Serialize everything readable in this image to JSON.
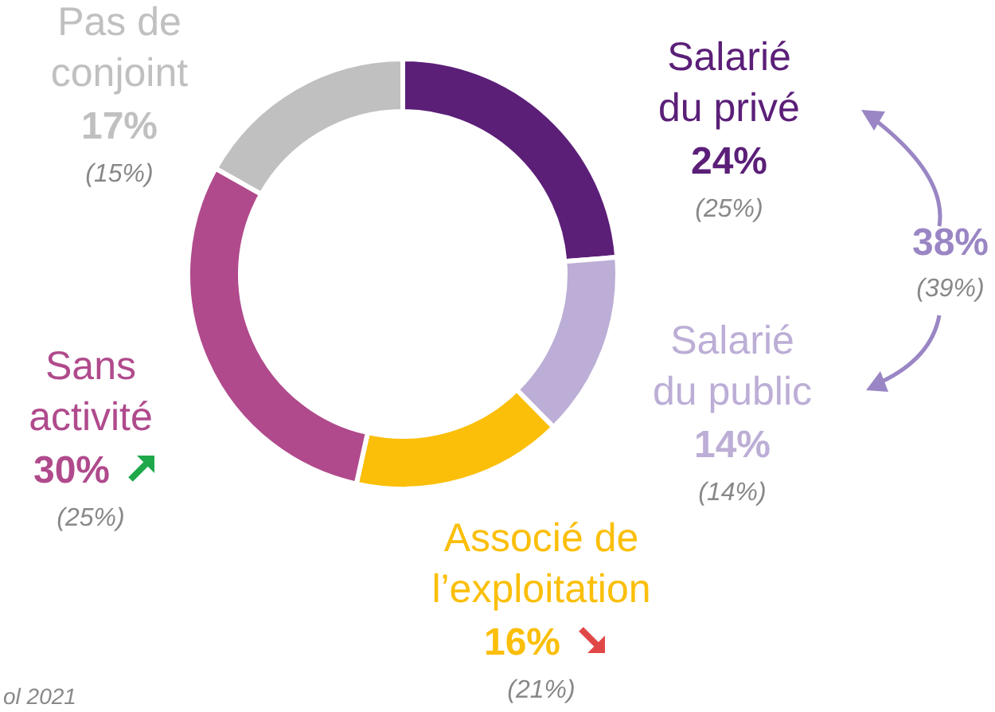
{
  "chart_data": {
    "type": "donut",
    "categories": [
      "Salarié du privé",
      "Salarié du public",
      "Associé de l’exploitation",
      "Sans activité",
      "Pas de conjoint"
    ],
    "values": [
      24,
      14,
      16,
      30,
      17
    ],
    "colors": [
      "#5b1f78",
      "#bcaed6",
      "#fbbf0a",
      "#b04a8c",
      "#c0c0c0"
    ],
    "value_labels": [
      "24%",
      "14%",
      "16%",
      "30%",
      "17%"
    ],
    "annotations": [
      "(25%)",
      "(14%)",
      "(21%)",
      "(25%)",
      "(15%)",
      "38%",
      "(39%)",
      "ol 2021"
    ]
  }
}
